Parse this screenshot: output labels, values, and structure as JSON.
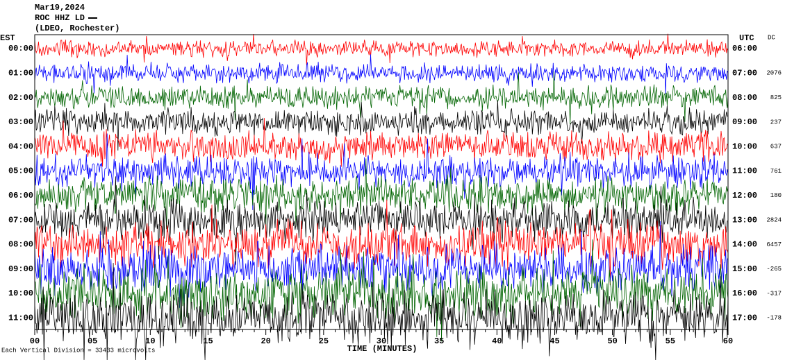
{
  "header": {
    "date": "Mar19,2024",
    "station": "ROC HHZ LD",
    "network": "(LDEO, Rochester)"
  },
  "left_axis": {
    "title": "EST",
    "labels": [
      "00:00",
      "01:00",
      "02:00",
      "03:00",
      "04:00",
      "05:00",
      "06:00",
      "07:00",
      "08:00",
      "09:00",
      "10:00",
      "11:00"
    ]
  },
  "right_axis": {
    "title": "UTC",
    "labels": [
      "06:00",
      "07:00",
      "08:00",
      "09:00",
      "10:00",
      "11:00",
      "12:00",
      "13:00",
      "14:00",
      "15:00",
      "16:00",
      "17:00"
    ]
  },
  "dc": {
    "title": "DC",
    "values": [
      null,
      "2076",
      "825",
      "237",
      "637",
      "761",
      "180",
      "2824",
      "6457",
      "-265",
      "-317",
      "-178"
    ]
  },
  "x_axis": {
    "title": "TIME (MINUTES)",
    "labels": [
      "00",
      "05",
      "10",
      "15",
      "20",
      "25",
      "30",
      "35",
      "40",
      "45",
      "50",
      "55",
      "60"
    ]
  },
  "footer": "Each Vertical Division = 33433 microvolts"
}
